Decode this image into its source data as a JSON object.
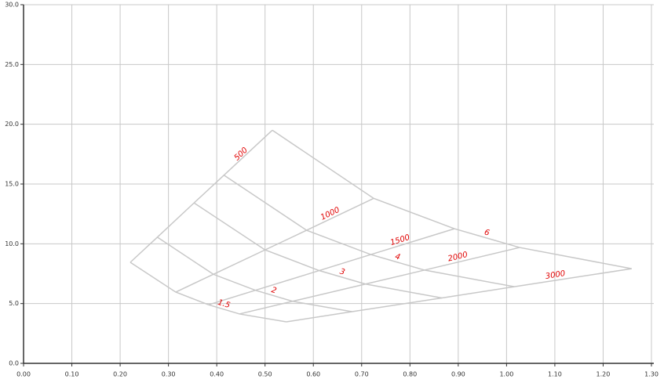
{
  "chart_data": {
    "type": "carpet",
    "xlim": [
      0,
      1.3
    ],
    "ylim": [
      0,
      30
    ],
    "grid": true,
    "line_color": "#c8c8c8",
    "label_color": "#e00000",
    "xticks": [
      {
        "value": 0,
        "label": "0.00"
      },
      {
        "value": 0.1,
        "label": "0.10"
      },
      {
        "value": 0.2,
        "label": "0.20"
      },
      {
        "value": 0.3,
        "label": "0.30"
      },
      {
        "value": 0.4,
        "label": "0.40"
      },
      {
        "value": 0.5,
        "label": "0.50"
      },
      {
        "value": 0.6,
        "label": "0.60"
      },
      {
        "value": 0.7,
        "label": "0.70"
      },
      {
        "value": 0.8,
        "label": "0.80"
      },
      {
        "value": 0.9,
        "label": "0.90"
      },
      {
        "value": 1.0,
        "label": "1.00"
      },
      {
        "value": 1.1,
        "label": "1.10"
      },
      {
        "value": 1.2,
        "label": "1.20"
      },
      {
        "value": 1.3,
        "label": "1.30"
      }
    ],
    "yticks": [
      {
        "value": 0,
        "label": "0.0"
      },
      {
        "value": 5,
        "label": "5.0"
      },
      {
        "value": 10,
        "label": "10.0"
      },
      {
        "value": 15,
        "label": "15.0"
      },
      {
        "value": 20,
        "label": "20.0"
      },
      {
        "value": 25,
        "label": "25.0"
      },
      {
        "value": 30,
        "label": "30.0"
      }
    ],
    "series": [
      {
        "name": "500",
        "x": [
          0.221,
          0.277,
          0.353,
          0.415,
          0.515
        ],
        "values": [
          8.45,
          10.55,
          13.42,
          15.74,
          19.5
        ]
      },
      {
        "name": "1000",
        "x": [
          0.315,
          0.393,
          0.5,
          0.586,
          0.725
        ],
        "values": [
          5.96,
          7.45,
          9.49,
          11.13,
          13.8
        ]
      },
      {
        "name": "1500",
        "x": [
          0.383,
          0.48,
          0.612,
          0.719,
          0.892
        ],
        "values": [
          4.9,
          6.11,
          7.76,
          9.1,
          11.26
        ]
      },
      {
        "name": "2000",
        "x": [
          0.447,
          0.557,
          0.708,
          0.83,
          1.027
        ],
        "values": [
          4.13,
          5.19,
          6.63,
          7.8,
          9.69
        ]
      },
      {
        "name": "3000",
        "x": [
          0.544,
          0.68,
          0.866,
          1.016,
          1.259
        ],
        "values": [
          3.47,
          4.32,
          5.47,
          6.41,
          7.92
        ]
      },
      {
        "name": "1.5",
        "x": [
          0.221,
          0.315,
          0.383,
          0.447,
          0.544
        ],
        "values": [
          8.45,
          5.96,
          4.9,
          4.13,
          3.47
        ]
      },
      {
        "name": "2",
        "x": [
          0.277,
          0.393,
          0.48,
          0.557,
          0.68
        ],
        "values": [
          10.55,
          7.45,
          6.11,
          5.19,
          4.32
        ]
      },
      {
        "name": "3",
        "x": [
          0.353,
          0.5,
          0.612,
          0.708,
          0.866
        ],
        "values": [
          13.42,
          9.49,
          7.76,
          6.63,
          5.47
        ]
      },
      {
        "name": "4",
        "x": [
          0.415,
          0.586,
          0.719,
          0.83,
          1.016
        ],
        "values": [
          15.74,
          11.13,
          9.1,
          7.8,
          6.41
        ]
      },
      {
        "name": "6",
        "x": [
          0.515,
          0.725,
          0.892,
          1.027,
          1.259
        ],
        "values": [
          19.5,
          13.8,
          11.26,
          9.69,
          7.92
        ]
      }
    ]
  }
}
